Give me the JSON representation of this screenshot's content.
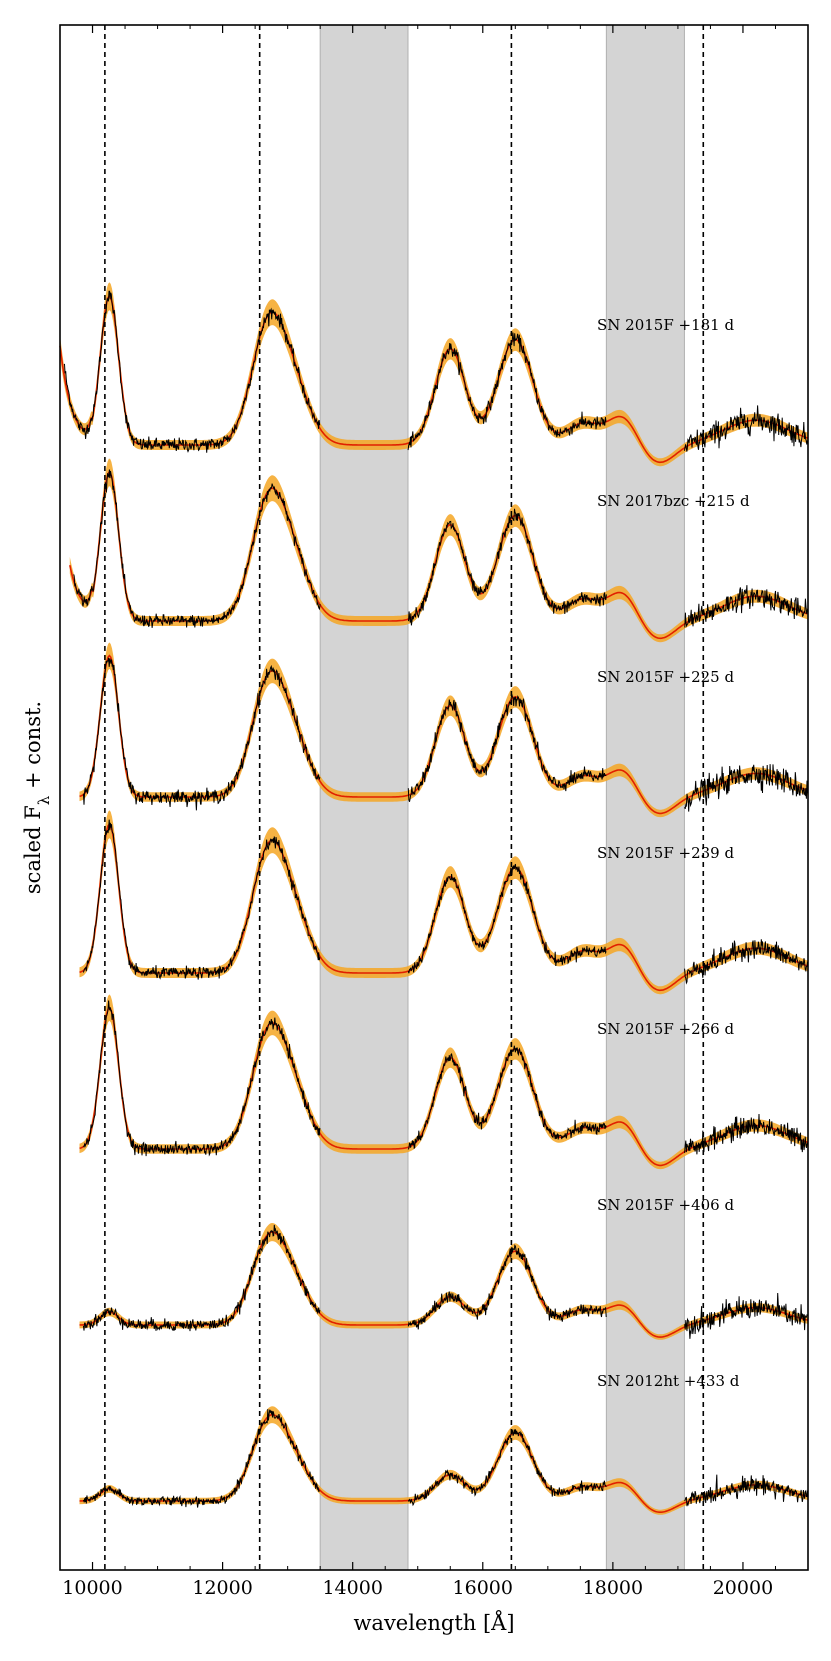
{
  "chart_data": {
    "type": "line",
    "title": "",
    "xlabel": "wavelength [Å]",
    "ylabel": "scaled F",
    "ylabel_sub": "λ",
    "ylabel_suffix": " + const.",
    "xlim": [
      9500,
      21000
    ],
    "xticks": [
      10000,
      12000,
      14000,
      16000,
      18000,
      20000
    ],
    "xtick_labels": [
      "10000",
      "12000",
      "14000",
      "16000",
      "18000",
      "20000"
    ],
    "grid": false,
    "legend": "none",
    "telluric_bands": [
      [
        13500,
        14850
      ],
      [
        17900,
        19100
      ]
    ],
    "reference_lines": [
      10190,
      12570,
      16440,
      19390
    ],
    "colors": {
      "observed": "#000000",
      "model": "#e02000",
      "model_band": "#f5a623",
      "telluric": "#d4d4d4",
      "telluric_edge": "#b0b0b0"
    },
    "series": [
      {
        "label": "SN 2015F  +181 d",
        "x_start": 9500,
        "offset": 0,
        "scale": 1.0,
        "noise": 0.055,
        "rise": 1.6
      },
      {
        "label": "SN 2017bzc  +215 d",
        "x_start": 9650,
        "offset": 1,
        "scale": 1.0,
        "noise": 0.05,
        "rise": 0.9
      },
      {
        "label": "SN 2015F  +225 d",
        "x_start": 9800,
        "offset": 2,
        "scale": 0.95,
        "noise": 0.06,
        "rise": 0.0
      },
      {
        "label": "SN 2015F  +239 d",
        "x_start": 9800,
        "offset": 3,
        "scale": 1.0,
        "noise": 0.045,
        "rise": 0.0
      },
      {
        "label": "SN 2015F  +266 d",
        "x_start": 9800,
        "offset": 4,
        "scale": 0.95,
        "noise": 0.05,
        "rise": 0.0
      },
      {
        "label": "SN 2015F  +406 d",
        "x_start": 9800,
        "offset": 5,
        "scale": 0.7,
        "noise": 0.07,
        "rise": 0.0
      },
      {
        "label": "SN 2012ht  +433 d",
        "x_start": 9800,
        "offset": 6,
        "scale": 0.65,
        "noise": 0.06,
        "rise": 0.0
      }
    ]
  }
}
